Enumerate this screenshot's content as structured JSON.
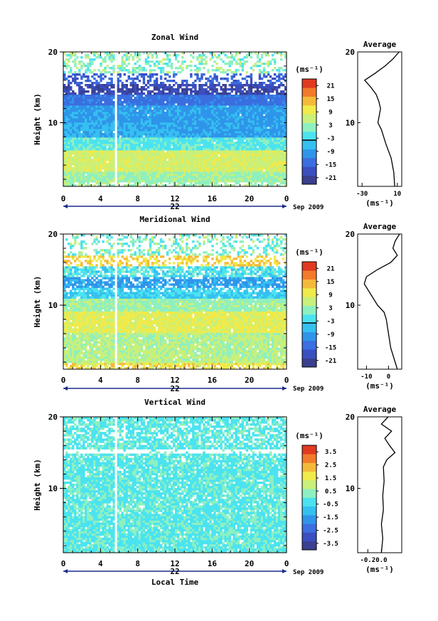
{
  "colorbar_unit": "(ms⁻¹)",
  "unit_label": "(ms⁻¹)",
  "average_title": "Average",
  "date_label": "Sep 2009",
  "day_label": "22",
  "x_label": "Local Time",
  "y_label": "Height (km)",
  "colors": {
    "scale": [
      "#3a3f8f",
      "#3a4fc0",
      "#3b6ee0",
      "#2f95ea",
      "#35c0f0",
      "#4be3f0",
      "#8ef0c0",
      "#c8f07a",
      "#f0ea4a",
      "#f5b93a",
      "#f27a2a",
      "#e03a20"
    ]
  },
  "chart_data": [
    {
      "type": "heatmap",
      "title": "Zonal Wind",
      "x_ticks": [
        "0",
        "4",
        "8",
        "12",
        "16",
        "20",
        "0"
      ],
      "y_ticks": [
        "10",
        "20"
      ],
      "ylim": [
        1,
        20
      ],
      "xlim": [
        0,
        24
      ],
      "colorbar_ticks": [
        "21",
        "15",
        "9",
        "3",
        "-3",
        "-9",
        "-15",
        "-21"
      ],
      "colorbar_range": [
        -24,
        24
      ],
      "average": {
        "x_ticks": [
          "-30",
          "10"
        ],
        "y_ticks": [
          "10",
          "20"
        ],
        "xlim": [
          -35,
          15
        ],
        "profile": [
          [
            7,
            1
          ],
          [
            6,
            3
          ],
          [
            3,
            5
          ],
          [
            -3,
            7
          ],
          [
            -8,
            9
          ],
          [
            -12,
            10
          ],
          [
            -9,
            12
          ],
          [
            -11,
            13
          ],
          [
            -14,
            14
          ],
          [
            -20,
            15
          ],
          [
            -27,
            16
          ],
          [
            -15,
            17
          ],
          [
            -4,
            18
          ],
          [
            5,
            19
          ],
          [
            12,
            20
          ]
        ]
      }
    },
    {
      "type": "heatmap",
      "title": "Meridional Wind",
      "x_ticks": [
        "0",
        "4",
        "8",
        "12",
        "16",
        "20",
        "0"
      ],
      "y_ticks": [
        "10",
        "20"
      ],
      "ylim": [
        1,
        20
      ],
      "xlim": [
        0,
        24
      ],
      "colorbar_ticks": [
        "21",
        "15",
        "9",
        "3",
        "-3",
        "-9",
        "-15",
        "-21"
      ],
      "colorbar_range": [
        -24,
        24
      ],
      "average": {
        "x_ticks": [
          "-10",
          "0"
        ],
        "y_ticks": [
          "10",
          "20"
        ],
        "xlim": [
          -14,
          6
        ],
        "profile": [
          [
            4,
            1
          ],
          [
            3,
            2
          ],
          [
            1,
            4
          ],
          [
            0,
            6
          ],
          [
            -1,
            8
          ],
          [
            -2,
            9
          ],
          [
            -5,
            10
          ],
          [
            -7,
            11
          ],
          [
            -9,
            12
          ],
          [
            -11,
            13
          ],
          [
            -10,
            14
          ],
          [
            -5,
            15
          ],
          [
            1,
            16
          ],
          [
            4,
            17
          ],
          [
            2,
            18
          ],
          [
            3,
            19
          ],
          [
            5,
            20
          ]
        ]
      }
    },
    {
      "type": "heatmap",
      "title": "Vertical Wind",
      "x_ticks": [
        "0",
        "4",
        "8",
        "12",
        "16",
        "20",
        "0"
      ],
      "y_ticks": [
        "10",
        "20"
      ],
      "ylim": [
        1,
        20
      ],
      "xlim": [
        0,
        24
      ],
      "colorbar_ticks": [
        "3.5",
        "2.5",
        "1.5",
        "0.5",
        "-0.5",
        "-1.5",
        "-2.5",
        "-3.5"
      ],
      "colorbar_range": [
        -4,
        4
      ],
      "average": {
        "x_ticks": [
          "-0.2",
          "0.0"
        ],
        "y_ticks": [
          "10",
          "20"
        ],
        "xlim": [
          -0.35,
          0.3
        ],
        "profile": [
          [
            0.0,
            1
          ],
          [
            0.02,
            3
          ],
          [
            0.0,
            5
          ],
          [
            0.03,
            7
          ],
          [
            0.02,
            9
          ],
          [
            0.04,
            11
          ],
          [
            0.03,
            13
          ],
          [
            0.08,
            14
          ],
          [
            0.2,
            15
          ],
          [
            0.12,
            16
          ],
          [
            0.05,
            17
          ],
          [
            0.15,
            18
          ],
          [
            0.0,
            19
          ],
          [
            0.1,
            20
          ]
        ]
      }
    }
  ]
}
